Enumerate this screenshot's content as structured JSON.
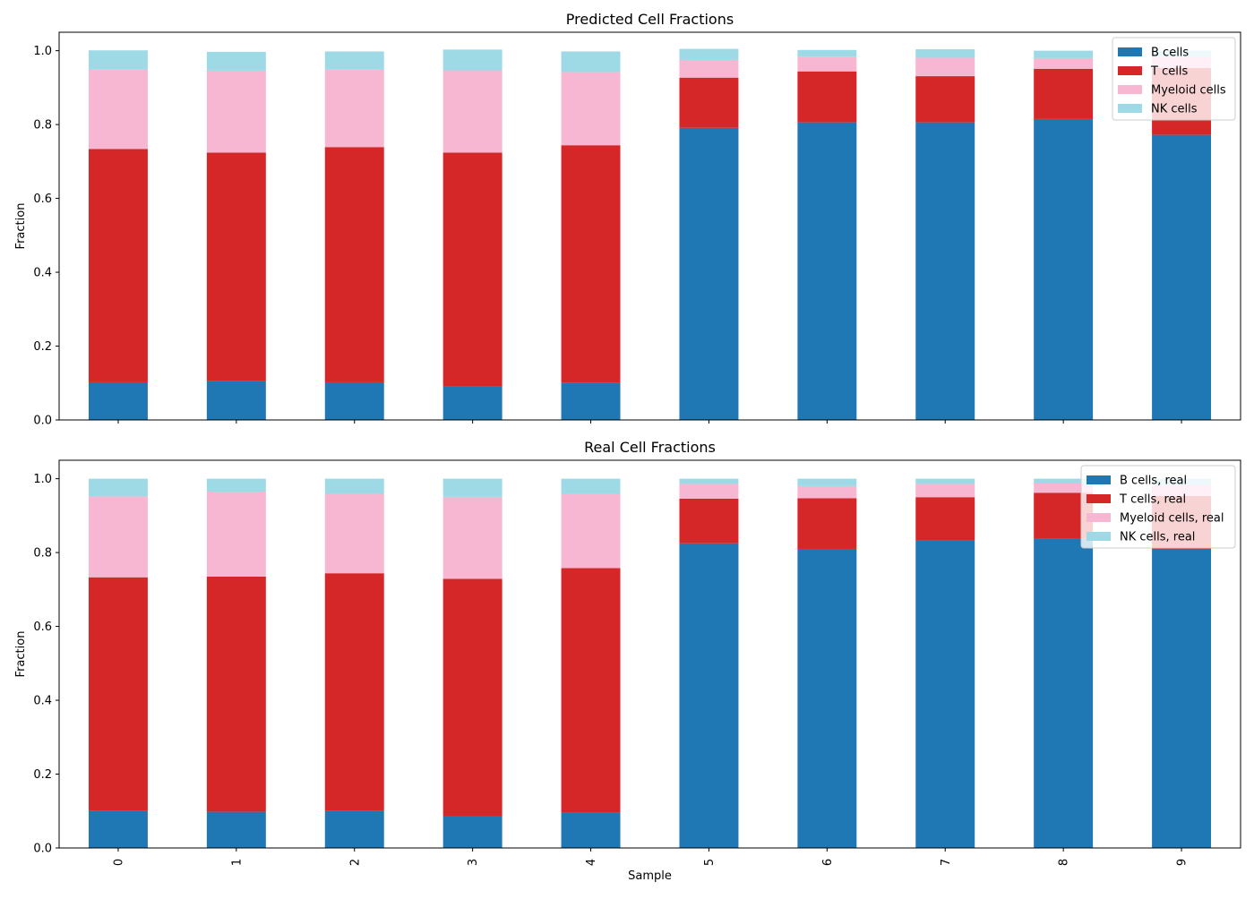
{
  "figure": {
    "xlabel": "Sample"
  },
  "chart_data": [
    {
      "type": "bar",
      "stacked": true,
      "title": "Predicted Cell Fractions",
      "xlabel": "",
      "ylabel": "Fraction",
      "ylim": [
        0,
        1.05
      ],
      "yticks": [
        0.0,
        0.2,
        0.4,
        0.6,
        0.8,
        1.0
      ],
      "ytick_labels": [
        "0.0",
        "0.2",
        "0.4",
        "0.6",
        "0.8",
        "1.0"
      ],
      "categories": [
        "0",
        "1",
        "2",
        "3",
        "4",
        "5",
        "6",
        "7",
        "8",
        "9"
      ],
      "legend_position": "top-right",
      "grid": false,
      "series": [
        {
          "name": "B cells",
          "color": "#1f77b4",
          "values": [
            0.102,
            0.105,
            0.102,
            0.09,
            0.1,
            0.791,
            0.806,
            0.806,
            0.815,
            0.772
          ]
        },
        {
          "name": "T cells",
          "color": "#d62728",
          "values": [
            0.632,
            0.619,
            0.637,
            0.634,
            0.644,
            0.136,
            0.138,
            0.125,
            0.136,
            0.181
          ]
        },
        {
          "name": "Myeloid cells",
          "color": "#f7b6d2",
          "values": [
            0.215,
            0.222,
            0.21,
            0.223,
            0.198,
            0.048,
            0.04,
            0.05,
            0.029,
            0.03
          ]
        },
        {
          "name": "NK cells",
          "color": "#9edae5",
          "values": [
            0.052,
            0.051,
            0.049,
            0.056,
            0.056,
            0.03,
            0.018,
            0.023,
            0.02,
            0.017
          ]
        }
      ]
    },
    {
      "type": "bar",
      "stacked": true,
      "title": "Real Cell Fractions",
      "xlabel": "Sample",
      "ylabel": "Fraction",
      "ylim": [
        0,
        1.05
      ],
      "yticks": [
        0.0,
        0.2,
        0.4,
        0.6,
        0.8,
        1.0
      ],
      "ytick_labels": [
        "0.0",
        "0.2",
        "0.4",
        "0.6",
        "0.8",
        "1.0"
      ],
      "categories": [
        "0",
        "1",
        "2",
        "3",
        "4",
        "5",
        "6",
        "7",
        "8",
        "9"
      ],
      "legend_position": "top-right",
      "grid": false,
      "series": [
        {
          "name": "B cells, real",
          "color": "#1f77b4",
          "values": [
            0.1,
            0.098,
            0.1,
            0.086,
            0.096,
            0.825,
            0.81,
            0.832,
            0.838,
            0.81
          ]
        },
        {
          "name": "T cells, real",
          "color": "#d62728",
          "values": [
            0.633,
            0.637,
            0.644,
            0.643,
            0.662,
            0.121,
            0.137,
            0.118,
            0.124,
            0.143
          ]
        },
        {
          "name": "Myeloid cells, real",
          "color": "#f7b6d2",
          "values": [
            0.219,
            0.23,
            0.215,
            0.222,
            0.2,
            0.04,
            0.033,
            0.036,
            0.025,
            0.03
          ]
        },
        {
          "name": "NK cells, real",
          "color": "#9edae5",
          "values": [
            0.048,
            0.035,
            0.041,
            0.049,
            0.042,
            0.014,
            0.02,
            0.014,
            0.013,
            0.017
          ]
        }
      ]
    }
  ]
}
